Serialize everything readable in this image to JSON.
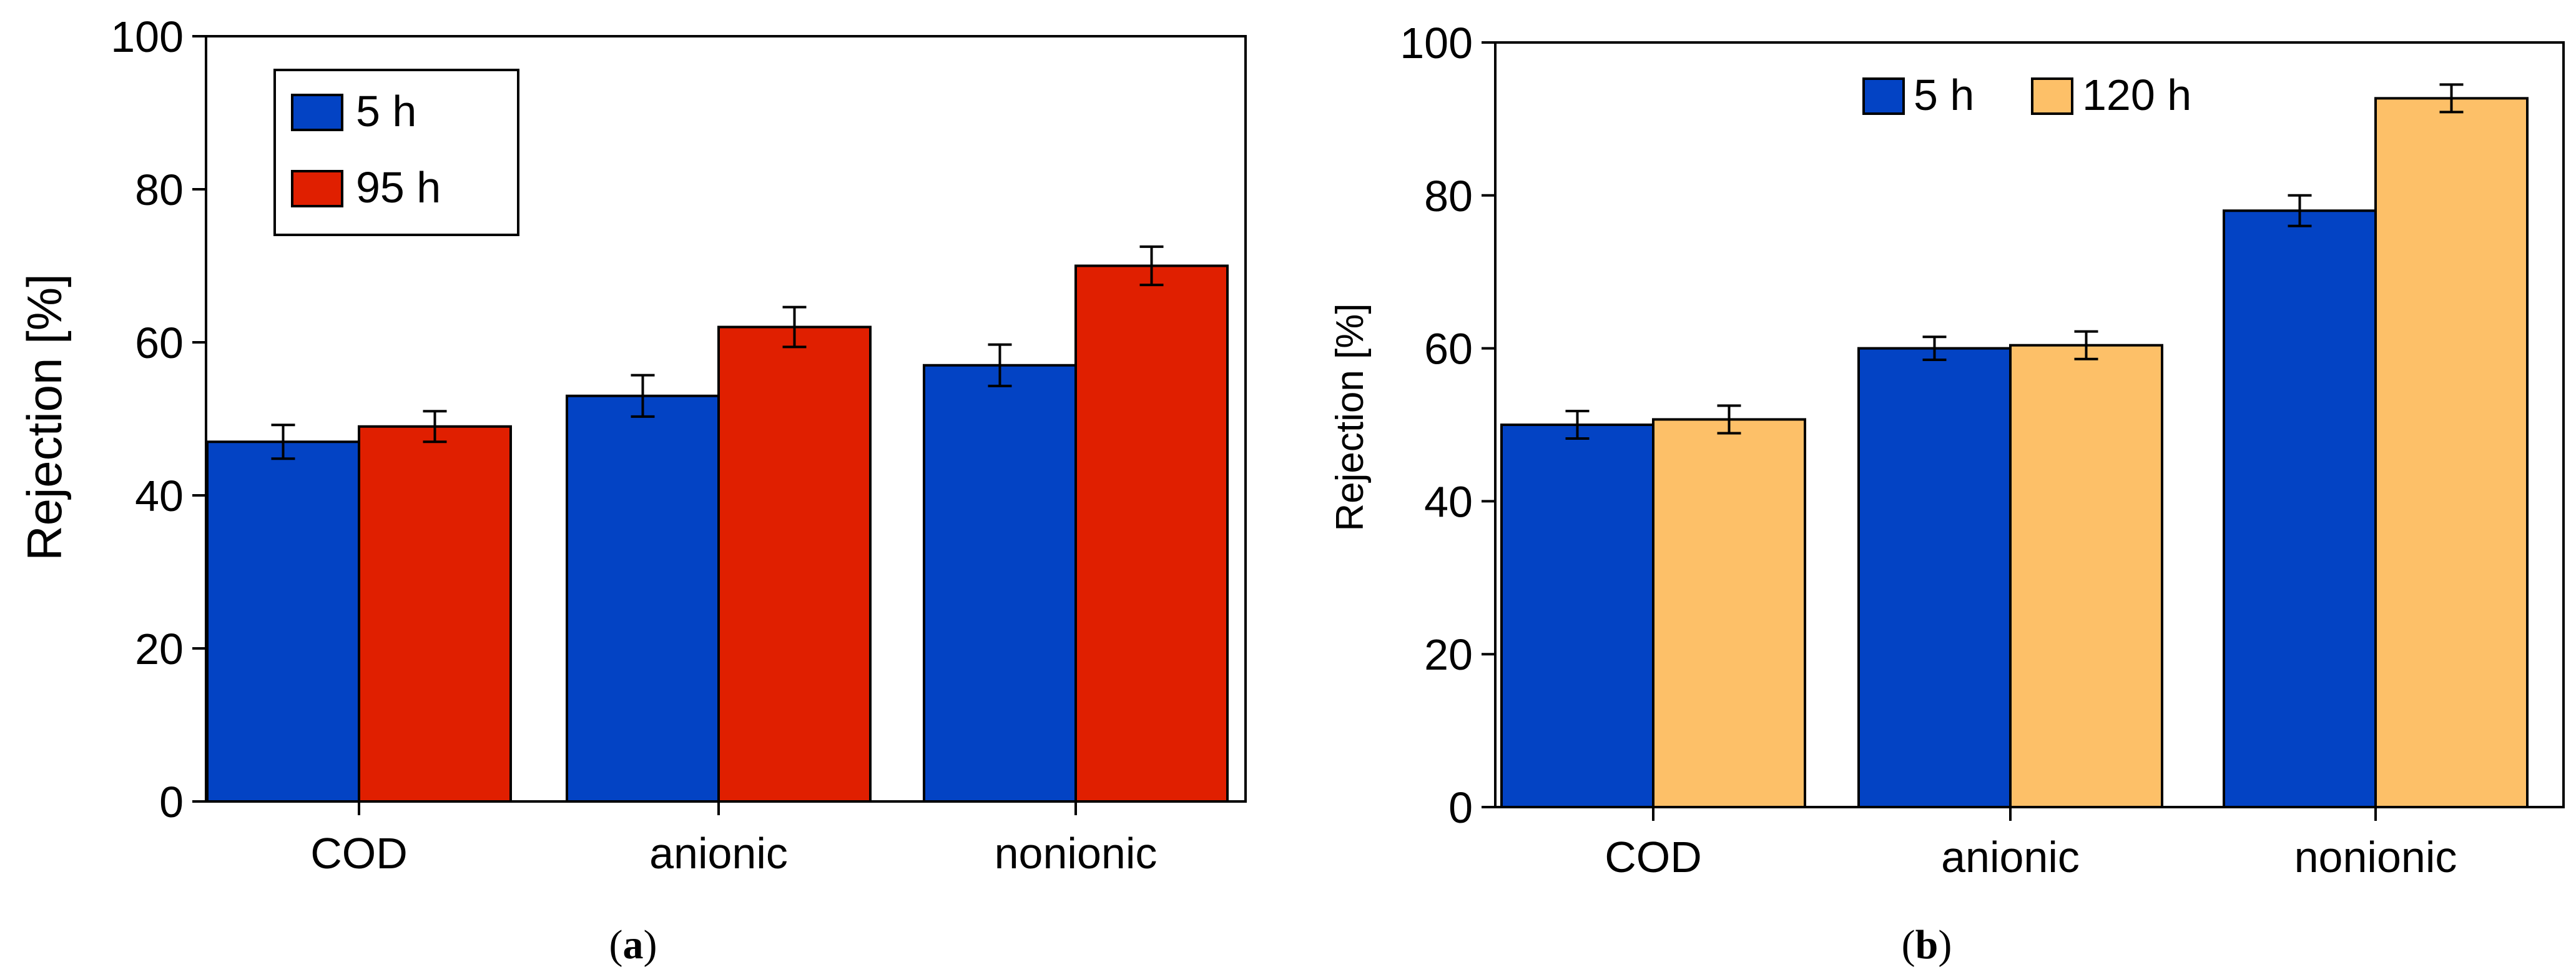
{
  "chart_data": [
    {
      "type": "bar",
      "panel_label": "a",
      "ylabel": "Rejection [%]",
      "xlabel": "",
      "ylim": [
        0,
        100
      ],
      "yticks": [
        "0",
        "20",
        "40",
        "60",
        "80",
        "100"
      ],
      "categories": [
        "COD",
        "anionic",
        "nonionic"
      ],
      "series": [
        {
          "name": "5 h",
          "color": "#0343c4",
          "values": [
            47,
            53,
            57
          ],
          "errors": [
            2.2,
            2.7,
            2.7
          ]
        },
        {
          "name": "95 h",
          "color": "#e01f00",
          "values": [
            49,
            62,
            70
          ],
          "errors": [
            2.0,
            2.6,
            2.5
          ]
        }
      ],
      "legend": "top-left"
    },
    {
      "type": "bar",
      "panel_label": "b",
      "ylabel": "Rejection [%]",
      "xlabel": "",
      "ylim": [
        0,
        100
      ],
      "yticks": [
        "0",
        "20",
        "40",
        "60",
        "80",
        "100"
      ],
      "categories": [
        "COD",
        "anionic",
        "nonionic"
      ],
      "series": [
        {
          "name": "5 h",
          "color": "#0343c4",
          "values": [
            50,
            60,
            78
          ],
          "errors": [
            1.8,
            1.5,
            2.0
          ]
        },
        {
          "name": "120 h",
          "color": "#fdc068",
          "values": [
            50.7,
            60.4,
            92.7
          ],
          "errors": [
            1.8,
            1.8,
            1.8
          ]
        }
      ],
      "legend": "top-center"
    }
  ]
}
